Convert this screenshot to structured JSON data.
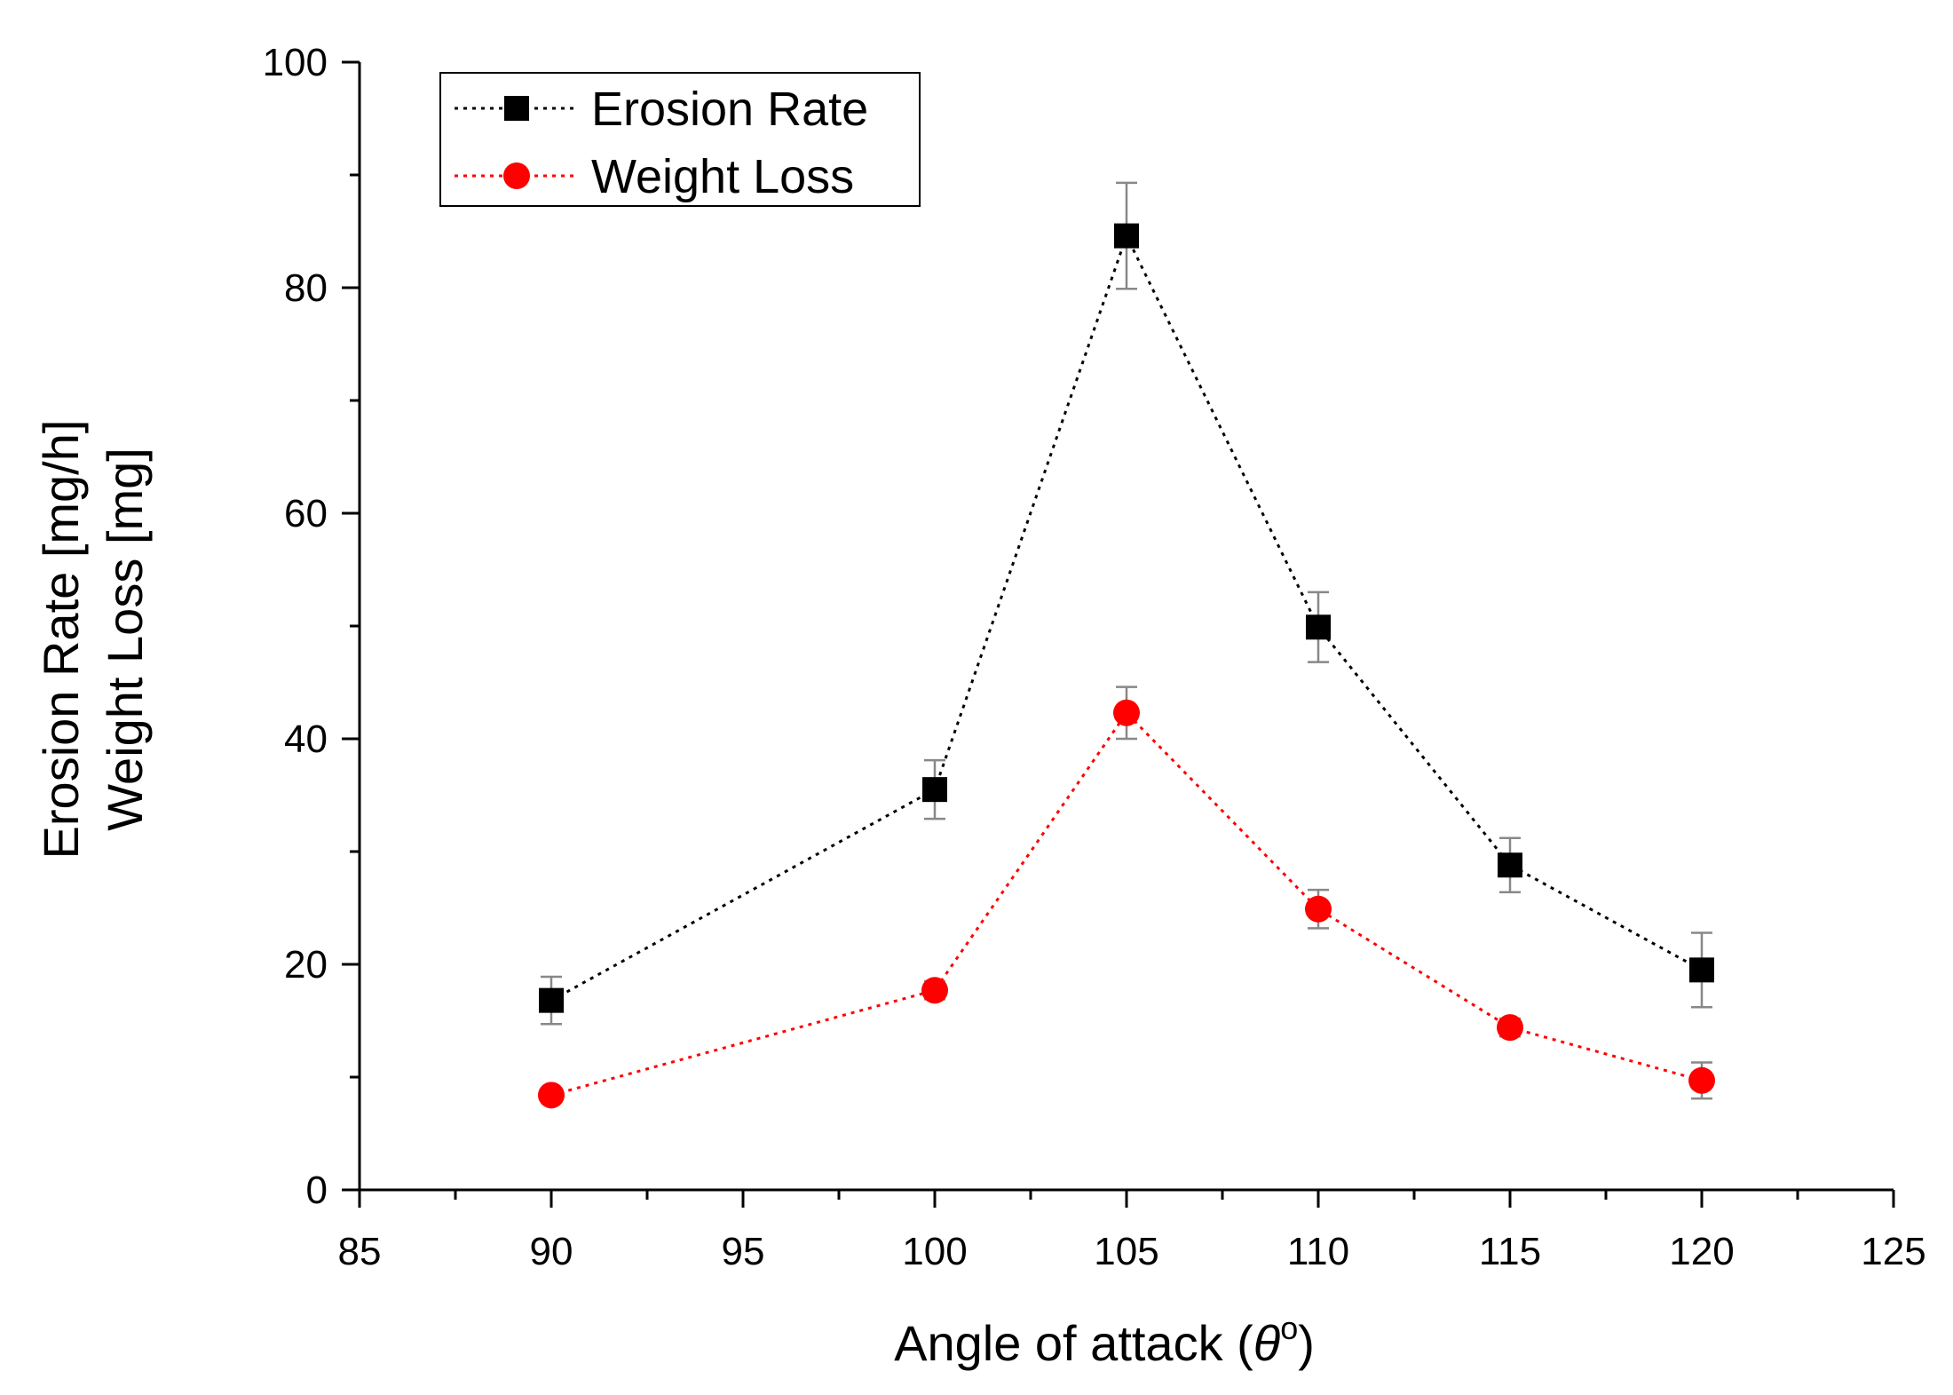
{
  "chart_data": {
    "type": "scatter",
    "x": [
      90,
      100,
      105,
      110,
      115,
      120
    ],
    "series": [
      {
        "name": "Erosion Rate",
        "values": [
          16.8,
          35.5,
          84.6,
          49.9,
          28.8,
          19.5
        ],
        "errors": [
          2.1,
          2.6,
          4.7,
          3.1,
          2.4,
          3.3
        ],
        "color": "#000000",
        "marker": "square",
        "line_style": "dotted"
      },
      {
        "name": "Weight Loss",
        "values": [
          8.4,
          17.7,
          42.3,
          24.9,
          14.4,
          9.7
        ],
        "errors": [
          0.6,
          0.8,
          2.3,
          1.7,
          0.8,
          1.6
        ],
        "color": "#ff0000",
        "marker": "circle",
        "line_style": "dotted"
      }
    ],
    "title": "",
    "xlabel": "Angle of attack (",
    "xlabel_symbol": "θ",
    "xlabel_superscript": "o",
    "xlabel_end": ")",
    "ylabel_line1": "Erosion Rate [mg/h]",
    "ylabel_line2": "Weight Loss [mg]",
    "xlim": [
      85,
      125
    ],
    "ylim": [
      0,
      100
    ],
    "x_ticks": [
      "85",
      "90",
      "95",
      "100",
      "105",
      "110",
      "115",
      "120",
      "125"
    ],
    "y_ticks": [
      "0",
      "20",
      "40",
      "60",
      "80",
      "100"
    ],
    "grid": false,
    "legend_position": "top-left",
    "error_bar_color": "#888888"
  }
}
